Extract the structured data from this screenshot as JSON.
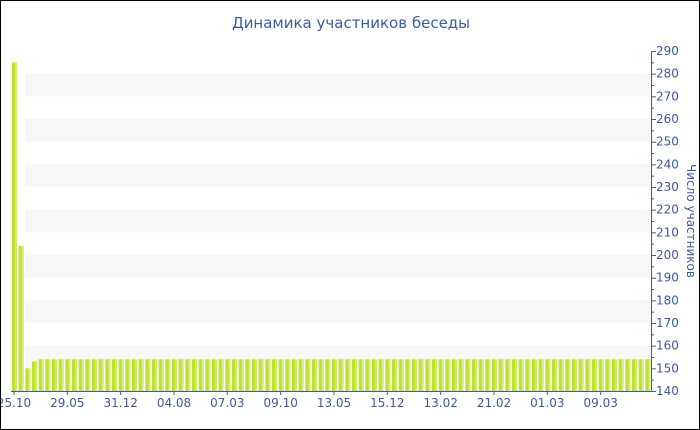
{
  "chart_data": {
    "type": "bar",
    "title": "Динамика участников беседы",
    "ylabel": "Число участников",
    "ylim": [
      140,
      290
    ],
    "y_ticks": [
      140,
      150,
      160,
      170,
      180,
      190,
      200,
      210,
      220,
      230,
      240,
      250,
      260,
      270,
      280,
      290
    ],
    "y_axis_side": "right",
    "x_tick_labels": [
      "25.10",
      "29.05",
      "31.12",
      "04.08",
      "07.03",
      "09.10",
      "13.05",
      "15.12",
      "13.02",
      "21.02",
      "01.03",
      "09.03"
    ],
    "x_tick_every": 8,
    "values": [
      285,
      204,
      150,
      153,
      154,
      154,
      154,
      154,
      154,
      154,
      154,
      154,
      154,
      154,
      154,
      154,
      154,
      154,
      154,
      154,
      154,
      154,
      154,
      154,
      154,
      154,
      154,
      154,
      154,
      154,
      154,
      154,
      154,
      154,
      154,
      154,
      154,
      154,
      154,
      154,
      154,
      154,
      154,
      154,
      154,
      154,
      154,
      154,
      154,
      154,
      154,
      154,
      154,
      154,
      154,
      154,
      154,
      154,
      154,
      154,
      154,
      154,
      154,
      154,
      154,
      154,
      154,
      154,
      154,
      154,
      154,
      154,
      154,
      154,
      154,
      154,
      154,
      154,
      154,
      154,
      154,
      154,
      154,
      154,
      154,
      154,
      154,
      154,
      154,
      154,
      154,
      154,
      154,
      154,
      154,
      154
    ],
    "grid": "alternating horizontal bands",
    "colors": {
      "bar": "#bde22f",
      "axis": "#3d5a9e",
      "band": "#f7f7f7",
      "text": "#3d5a9e"
    }
  }
}
